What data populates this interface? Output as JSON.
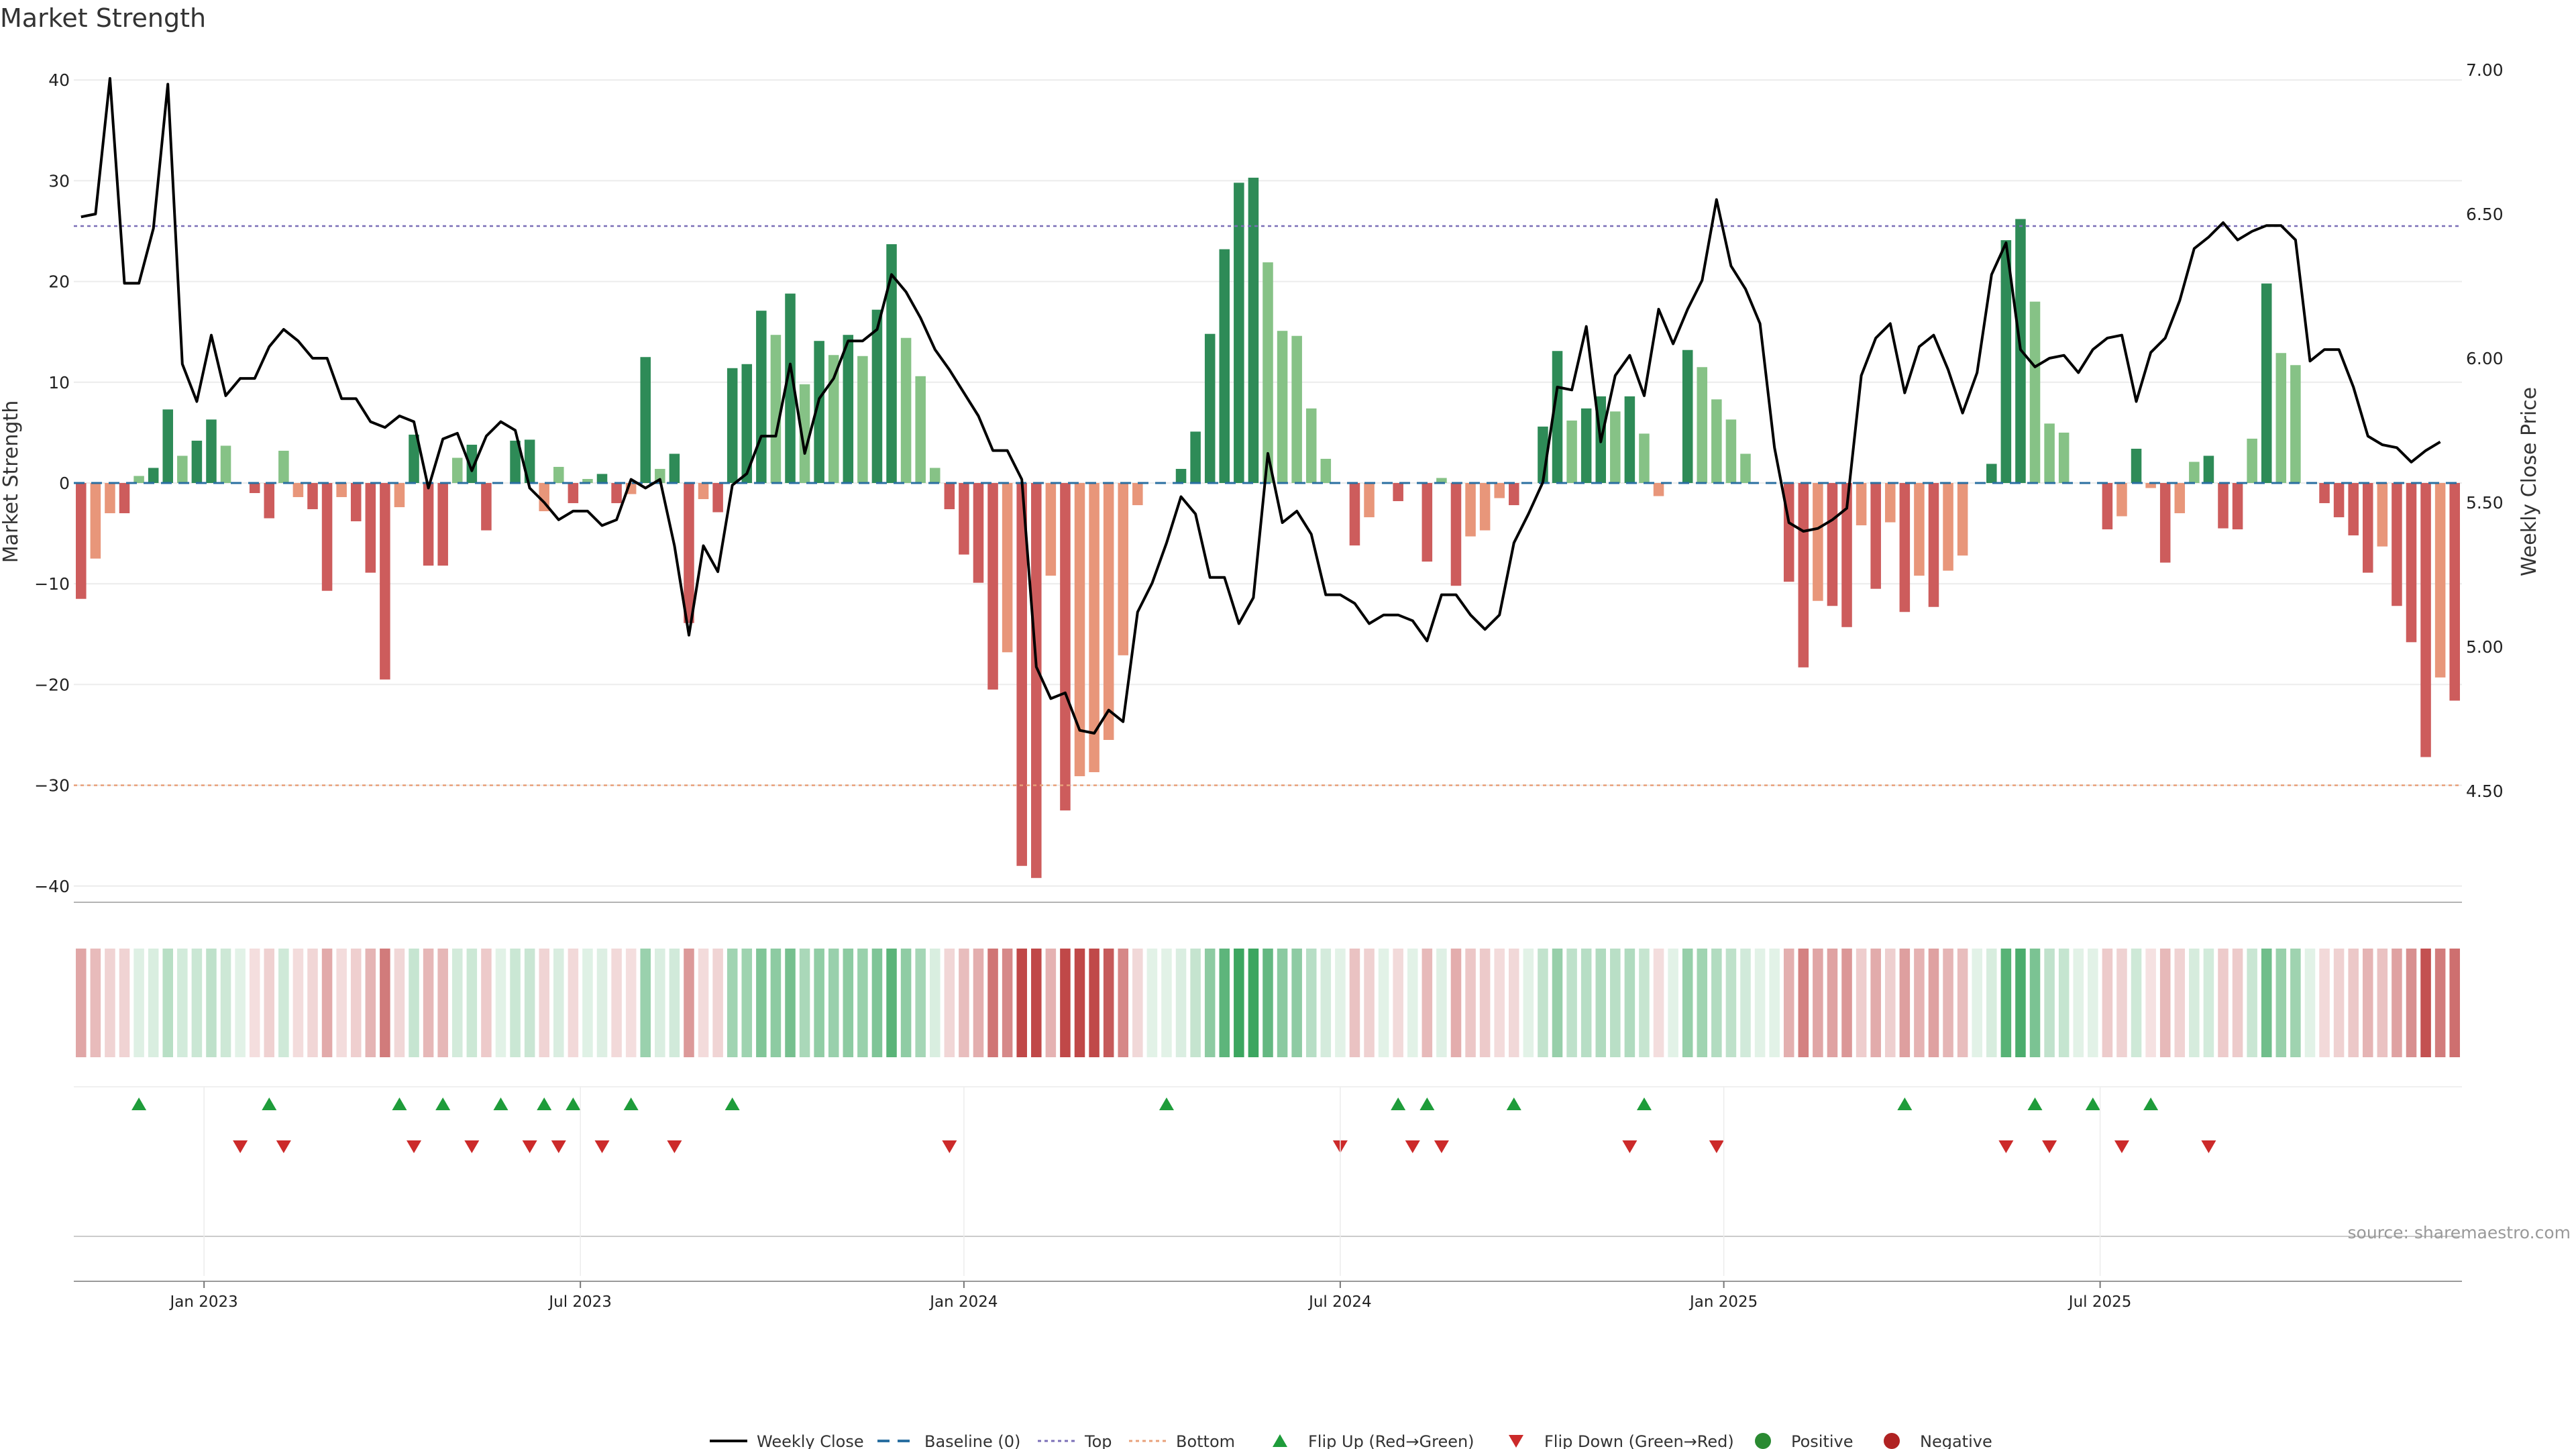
{
  "chart_data": {
    "type": "bar+line",
    "title": "Market Strength",
    "ylabel_left": "Market Strength",
    "ylabel_right": "Weekly Close Price",
    "ylim_left": [
      -42,
      42
    ],
    "yticks_left": [
      "40",
      "30",
      "20",
      "10",
      "0",
      "−10",
      "−20",
      "−30",
      "−40"
    ],
    "ylim_right": [
      4.2,
      7.0
    ],
    "yticks_right": [
      "7.00",
      "6.50",
      "6.00",
      "5.50",
      "5.00",
      "4.50"
    ],
    "top_line": 25.5,
    "bottom_line": -30,
    "date_ticks": [
      {
        "label": "Jan 2023",
        "week": 9
      },
      {
        "label": "Jul 2023",
        "week": 35
      },
      {
        "label": "Jan 2024",
        "week": 61.5
      },
      {
        "label": "Jul 2024",
        "week": 87.5
      },
      {
        "label": "Jan 2025",
        "week": 114
      },
      {
        "label": "Jul 2025",
        "week": 140
      }
    ],
    "strength": [
      -11.5,
      -7.5,
      -3,
      -3,
      0.7,
      1.5,
      7.3,
      2.7,
      4.2,
      6.3,
      3.7,
      0,
      -1,
      -3.5,
      3.2,
      -1.4,
      -2.6,
      -10.7,
      -1.4,
      -3.8,
      -8.9,
      -19.5,
      -2.4,
      4.8,
      -8.2,
      -8.2,
      2.5,
      3.8,
      -4.7,
      0,
      4.2,
      4.3,
      -2.8,
      1.6,
      -2,
      0.4,
      0.9,
      -2,
      -1.1,
      12.5,
      1.4,
      2.9,
      -13.9,
      -1.6,
      -2.9,
      11.4,
      11.8,
      17.1,
      14.7,
      18.8,
      9.8,
      14.1,
      12.7,
      14.7,
      12.6,
      17.2,
      23.7,
      14.4,
      10.6,
      1.5,
      -2.6,
      -7.1,
      -9.9,
      -20.5,
      -16.8,
      -38,
      -39.2,
      -9.2,
      -32.5,
      -29.1,
      -28.7,
      -25.5,
      -17.1,
      -2.2,
      0,
      0,
      1.4,
      5.1,
      14.8,
      23.2,
      29.8,
      30.3,
      21.9,
      15.1,
      14.6,
      7.4,
      2.4,
      0,
      -6.2,
      -3.4,
      0,
      -1.8,
      0,
      -7.8,
      0.5,
      -10.2,
      -5.3,
      -4.7,
      -1.5,
      -2.2,
      0,
      5.6,
      13.1,
      6.2,
      7.4,
      8.6,
      7.1,
      8.6,
      4.9,
      -1.3,
      0,
      13.2,
      11.5,
      8.3,
      6.3,
      2.9,
      0,
      0,
      -9.8,
      -18.3,
      -11.7,
      -12.2,
      -14.3,
      -4.2,
      -10.5,
      -3.9,
      -12.8,
      -9.2,
      -12.3,
      -8.7,
      -7.2,
      0,
      1.9,
      24.1,
      26.2,
      18,
      5.9,
      5,
      0,
      0,
      -4.6,
      -3.3,
      3.4,
      -0.5,
      -7.9,
      -3,
      2.1,
      2.7,
      -4.5,
      -4.6,
      4.4,
      19.8,
      12.9,
      11.7,
      0,
      -2,
      -3.4,
      -5.2,
      -8.9,
      -6.3,
      -12.2,
      -15.8,
      -27.2,
      -19.3,
      -21.6
    ],
    "weekly_close": [
      6.49,
      6.5,
      6.97,
      6.26,
      6.26,
      6.45,
      6.95,
      5.98,
      5.85,
      6.08,
      5.87,
      5.93,
      5.93,
      6.04,
      6.1,
      6.06,
      6.0,
      6.0,
      5.86,
      5.86,
      5.78,
      5.76,
      5.8,
      5.78,
      5.55,
      5.72,
      5.74,
      5.61,
      5.73,
      5.78,
      5.75,
      5.55,
      5.5,
      5.44,
      5.47,
      5.47,
      5.42,
      5.44,
      5.58,
      5.55,
      5.58,
      5.35,
      5.04,
      5.35,
      5.26,
      5.56,
      5.6,
      5.73,
      5.73,
      5.98,
      5.67,
      5.86,
      5.93,
      6.06,
      6.06,
      6.1,
      6.29,
      6.23,
      6.14,
      6.03,
      5.96,
      5.88,
      5.8,
      5.68,
      5.68,
      5.58,
      4.93,
      4.82,
      4.84,
      4.71,
      4.7,
      4.78,
      4.74,
      5.12,
      5.22,
      5.36,
      5.52,
      5.46,
      5.24,
      5.24,
      5.08,
      5.17,
      5.67,
      5.43,
      5.47,
      5.39,
      5.18,
      5.18,
      5.15,
      5.08,
      5.11,
      5.11,
      5.09,
      5.02,
      5.18,
      5.18,
      5.11,
      5.06,
      5.11,
      5.36,
      5.46,
      5.57,
      5.9,
      5.89,
      6.11,
      5.71,
      5.94,
      6.01,
      5.87,
      6.17,
      6.05,
      6.17,
      6.27,
      6.55,
      6.32,
      6.24,
      6.12,
      5.69,
      5.43,
      5.4,
      5.41,
      5.44,
      5.48,
      5.94,
      6.07,
      6.12,
      5.88,
      6.04,
      6.08,
      5.96,
      5.81,
      5.95,
      6.29,
      6.4,
      6.03,
      5.97,
      6.0,
      6.01,
      5.95,
      6.03,
      6.07,
      6.08,
      5.85,
      6.02,
      6.07,
      6.2,
      6.38,
      6.42,
      6.47,
      6.41,
      6.44,
      6.46,
      6.46,
      6.41,
      5.99,
      6.03,
      6.03,
      5.9,
      5.73,
      5.7,
      5.69,
      5.64,
      5.68,
      5.71
    ],
    "flip_up_weeks": [
      4,
      13,
      22,
      25,
      29,
      32,
      34,
      38,
      45,
      75,
      91,
      93,
      99,
      108,
      126,
      135,
      139,
      143
    ],
    "flip_down_weeks": [
      11,
      14,
      23,
      27,
      31,
      33,
      36,
      41,
      60,
      87,
      92,
      94,
      107,
      113,
      133,
      136,
      141,
      147
    ],
    "legend": [
      {
        "label": "Weekly Close",
        "symbol": "line",
        "color": "#000000"
      },
      {
        "label": "Baseline (0)",
        "symbol": "dash",
        "color": "#2a6fa1"
      },
      {
        "label": "Top",
        "symbol": "dot",
        "color": "#7b6fb7"
      },
      {
        "label": "Bottom",
        "symbol": "dot",
        "color": "#e8a07a"
      },
      {
        "label": "Flip Up (Red→Green)",
        "symbol": "triangle-up",
        "color": "#1e9c3a"
      },
      {
        "label": "Flip Down (Green→Red)",
        "symbol": "triangle-down",
        "color": "#cc2a2a"
      },
      {
        "label": "Positive",
        "symbol": "circle",
        "color": "#2a8a32"
      },
      {
        "label": "Negative",
        "symbol": "circle",
        "color": "#b02222"
      }
    ],
    "colors": {
      "pos_strong": "#2e8b57",
      "pos_weak": "#86c286",
      "neg_strong": "#cd5c5c",
      "neg_weak": "#e8967a",
      "top": "#7b6fb7",
      "bottom": "#e8a07a"
    }
  },
  "source_text": "source: sharemaestro.com"
}
